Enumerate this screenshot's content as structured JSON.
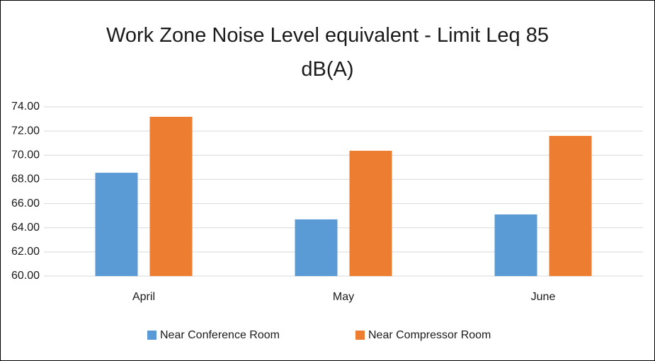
{
  "chart_data": {
    "type": "bar",
    "title": "Work Zone Noise Level equivalent - Limit Leq 85 dB(A)",
    "categories": [
      "April",
      "May",
      "June"
    ],
    "series": [
      {
        "name": "Near Conference Room",
        "color": "#5b9bd5",
        "values": [
          68.55,
          64.69,
          65.1
        ]
      },
      {
        "name": "Near Compressor Room",
        "color": "#ed7d31",
        "values": [
          73.18,
          70.37,
          71.6
        ]
      }
    ],
    "ylim": [
      60,
      74
    ],
    "yticks": [
      {
        "value": 60,
        "label": "60.00"
      },
      {
        "value": 62,
        "label": "62.00"
      },
      {
        "value": 64,
        "label": "64.00"
      },
      {
        "value": 66,
        "label": "66.00"
      },
      {
        "value": 68,
        "label": "68.00"
      },
      {
        "value": 70,
        "label": "70.00"
      },
      {
        "value": 72,
        "label": "72.00"
      },
      {
        "value": 74,
        "label": "74.00"
      }
    ],
    "grid": true,
    "legend": "bottom"
  }
}
